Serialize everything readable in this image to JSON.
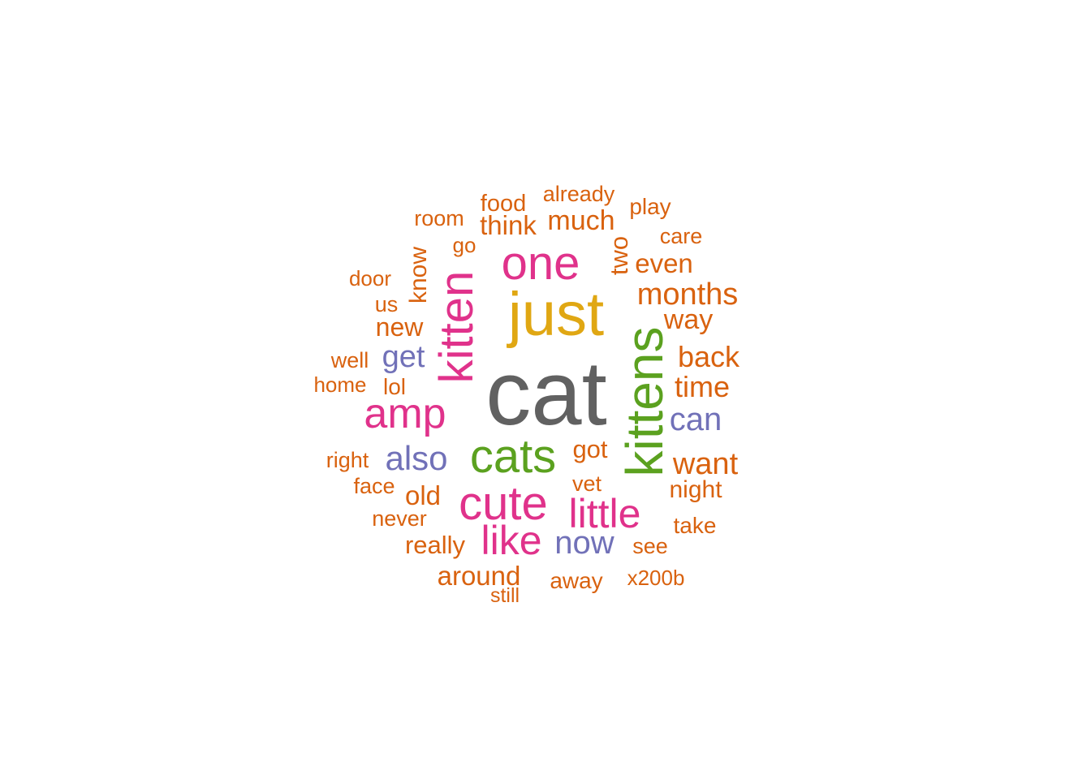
{
  "colors": {
    "background": "#ffffff",
    "gray": "#616161",
    "gold": "#e0a713",
    "green": "#5ba11f",
    "magenta": "#e0328b",
    "purple": "#7171b8",
    "orange": "#d9620f"
  },
  "words": [
    {
      "text": "cat",
      "color": "#616161"
    },
    {
      "text": "just",
      "color": "#e0a713"
    },
    {
      "text": "kittens",
      "color": "#5ba11f"
    },
    {
      "text": "cats",
      "color": "#5ba11f"
    },
    {
      "text": "one",
      "color": "#e0328b"
    },
    {
      "text": "kitten",
      "color": "#e0328b"
    },
    {
      "text": "cute",
      "color": "#e0328b"
    },
    {
      "text": "amp",
      "color": "#e0328b"
    },
    {
      "text": "little",
      "color": "#e0328b"
    },
    {
      "text": "like",
      "color": "#e0328b"
    },
    {
      "text": "also",
      "color": "#7171b8"
    },
    {
      "text": "now",
      "color": "#7171b8"
    },
    {
      "text": "can",
      "color": "#7171b8"
    },
    {
      "text": "get",
      "color": "#7171b8"
    },
    {
      "text": "months",
      "color": "#d9620f"
    },
    {
      "text": "back",
      "color": "#d9620f"
    },
    {
      "text": "time",
      "color": "#d9620f"
    },
    {
      "text": "want",
      "color": "#d9620f"
    },
    {
      "text": "even",
      "color": "#d9620f"
    },
    {
      "text": "much",
      "color": "#d9620f"
    },
    {
      "text": "think",
      "color": "#d9620f"
    },
    {
      "text": "old",
      "color": "#d9620f"
    },
    {
      "text": "new",
      "color": "#d9620f"
    },
    {
      "text": "around",
      "color": "#d9620f"
    },
    {
      "text": "really",
      "color": "#d9620f"
    },
    {
      "text": "way",
      "color": "#d9620f"
    },
    {
      "text": "got",
      "color": "#d9620f"
    },
    {
      "text": "two",
      "color": "#d9620f"
    },
    {
      "text": "night",
      "color": "#d9620f"
    },
    {
      "text": "know",
      "color": "#d9620f"
    },
    {
      "text": "food",
      "color": "#d9620f"
    },
    {
      "text": "already",
      "color": "#d9620f"
    },
    {
      "text": "away",
      "color": "#d9620f"
    },
    {
      "text": "take",
      "color": "#d9620f"
    },
    {
      "text": "play",
      "color": "#d9620f"
    },
    {
      "text": "care",
      "color": "#d9620f"
    },
    {
      "text": "room",
      "color": "#d9620f"
    },
    {
      "text": "face",
      "color": "#d9620f"
    },
    {
      "text": "never",
      "color": "#d9620f"
    },
    {
      "text": "vet",
      "color": "#d9620f"
    },
    {
      "text": "see",
      "color": "#d9620f"
    },
    {
      "text": "x200b",
      "color": "#d9620f"
    },
    {
      "text": "lol",
      "color": "#d9620f"
    },
    {
      "text": "us",
      "color": "#d9620f"
    },
    {
      "text": "well",
      "color": "#d9620f"
    },
    {
      "text": "right",
      "color": "#d9620f"
    },
    {
      "text": "home",
      "color": "#d9620f"
    },
    {
      "text": "door",
      "color": "#d9620f"
    },
    {
      "text": "go",
      "color": "#d9620f"
    },
    {
      "text": "still",
      "color": "#d9620f"
    }
  ]
}
